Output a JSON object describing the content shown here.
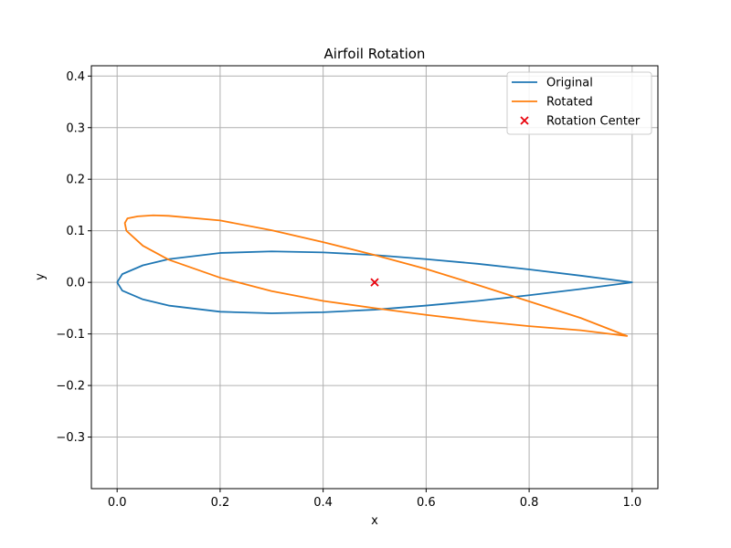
{
  "chart_data": {
    "type": "line",
    "title": "Airfoil Rotation",
    "xlabel": "x",
    "ylabel": "y",
    "xlim": [
      -0.05,
      1.05
    ],
    "ylim": [
      -0.4,
      0.42
    ],
    "xticks": [
      0.0,
      0.2,
      0.4,
      0.6,
      0.8,
      1.0
    ],
    "xtick_labels": [
      "0.0",
      "0.2",
      "0.4",
      "0.6",
      "0.8",
      "1.0"
    ],
    "yticks": [
      -0.3,
      -0.2,
      -0.1,
      0.0,
      0.1,
      0.2,
      0.3,
      0.4
    ],
    "ytick_labels": [
      "−0.3",
      "−0.2",
      "−0.1",
      "0.0",
      "0.1",
      "0.2",
      "0.3",
      "0.4"
    ],
    "grid": true,
    "legend_position": "top-right",
    "series": [
      {
        "name": "Original",
        "kind": "line",
        "color": "#1f77b4",
        "x": [
          0.0,
          0.01,
          0.05,
          0.1,
          0.2,
          0.3,
          0.4,
          0.5,
          0.6,
          0.7,
          0.8,
          0.9,
          1.0,
          0.9,
          0.8,
          0.7,
          0.6,
          0.5,
          0.4,
          0.3,
          0.2,
          0.1,
          0.05,
          0.01,
          0.0
        ],
        "y": [
          0.0,
          0.016,
          0.033,
          0.045,
          0.057,
          0.06,
          0.058,
          0.053,
          0.045,
          0.036,
          0.025,
          0.013,
          0.0,
          -0.013,
          -0.025,
          -0.036,
          -0.045,
          -0.053,
          -0.058,
          -0.06,
          -0.057,
          -0.045,
          -0.033,
          -0.016,
          0.0
        ]
      },
      {
        "name": "Rotated",
        "kind": "line",
        "color": "#ff7f0e",
        "x": [
          0.018,
          0.015,
          0.02,
          0.04,
          0.07,
          0.1,
          0.2,
          0.3,
          0.4,
          0.5,
          0.6,
          0.7,
          0.8,
          0.9,
          0.99,
          0.9,
          0.8,
          0.7,
          0.6,
          0.5,
          0.4,
          0.3,
          0.2,
          0.1,
          0.05,
          0.018
        ],
        "y": [
          0.1,
          0.115,
          0.124,
          0.128,
          0.13,
          0.129,
          0.12,
          0.101,
          0.078,
          0.053,
          0.026,
          -0.005,
          -0.037,
          -0.069,
          -0.104,
          -0.093,
          -0.085,
          -0.075,
          -0.063,
          -0.05,
          -0.036,
          -0.017,
          0.009,
          0.044,
          0.071,
          0.1
        ]
      },
      {
        "name": "Rotation Center",
        "kind": "scatter",
        "marker": "x",
        "color": "#e8000b",
        "x": [
          0.5
        ],
        "y": [
          0.0
        ]
      }
    ]
  }
}
